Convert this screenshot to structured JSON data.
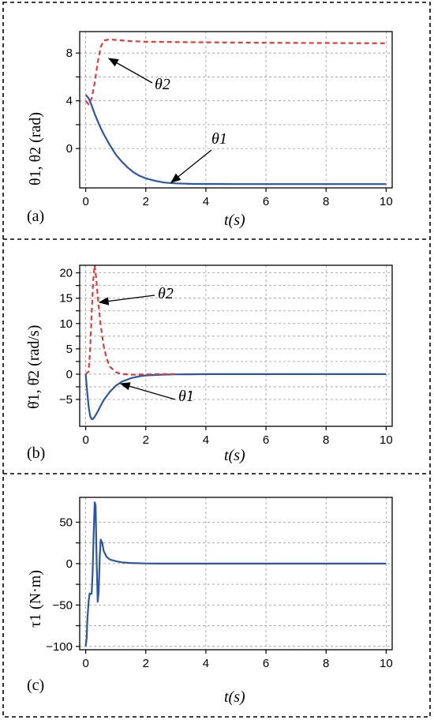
{
  "panels": [
    {
      "label": "(a)",
      "ylabel": "θ1, θ2 (rad)",
      "xlabel": "t(s)",
      "annotations": [
        "θ2",
        "θ1"
      ]
    },
    {
      "label": "(b)",
      "ylabel": "θ̇1, θ̇2 (rad/s)",
      "xlabel": "t(s)",
      "annotations": [
        "θ̇2",
        "θ̇1"
      ]
    },
    {
      "label": "(c)",
      "ylabel": "τ1 (N·m)",
      "xlabel": "t(s)",
      "annotations": []
    }
  ],
  "colors": {
    "theta1": "#2b55a5",
    "theta2": "#e23a3a",
    "grid": "#9a9a9a",
    "frame": "#000000"
  },
  "chart_data": [
    {
      "type": "line",
      "title": "",
      "xlabel": "t(s)",
      "ylabel": "θ1, θ2 (rad)",
      "xlim": [
        -0.2,
        10.2
      ],
      "ylim": [
        -3.3,
        9.8
      ],
      "xticks": [
        0,
        2,
        4,
        6,
        8,
        10
      ],
      "yticks": [
        0,
        4,
        8
      ],
      "grid": true,
      "series": [
        {
          "name": "θ1",
          "style": "solid",
          "color": "#2b55a5",
          "x": [
            0,
            0.1,
            0.2,
            0.3,
            0.4,
            0.5,
            0.6,
            0.8,
            1.0,
            1.2,
            1.4,
            1.6,
            1.8,
            2.0,
            2.3,
            2.6,
            3.0,
            3.5,
            4,
            5,
            6,
            7,
            8,
            9,
            10
          ],
          "y": [
            4.5,
            4.2,
            3.6,
            2.9,
            2.3,
            1.7,
            1.2,
            0.3,
            -0.5,
            -1.1,
            -1.6,
            -2.0,
            -2.3,
            -2.5,
            -2.7,
            -2.85,
            -2.92,
            -2.96,
            -2.97,
            -2.98,
            -2.98,
            -2.98,
            -2.98,
            -2.98,
            -2.98
          ]
        },
        {
          "name": "θ2",
          "style": "dashed",
          "color": "#e23a3a",
          "x": [
            0,
            0.1,
            0.2,
            0.3,
            0.4,
            0.5,
            0.6,
            0.8,
            1.0,
            1.5,
            2.0,
            3,
            4,
            5,
            6,
            7,
            8,
            9,
            10
          ],
          "y": [
            4.0,
            3.7,
            4.2,
            5.5,
            7.2,
            8.5,
            9.05,
            9.15,
            9.1,
            9.0,
            8.95,
            8.92,
            8.9,
            8.88,
            8.86,
            8.85,
            8.84,
            8.83,
            8.82
          ]
        }
      ]
    },
    {
      "type": "line",
      "title": "",
      "xlabel": "t(s)",
      "ylabel": "θ̇1, θ̇2 (rad/s)",
      "xlim": [
        -0.2,
        10.2
      ],
      "ylim": [
        -10.3,
        21.5
      ],
      "xticks": [
        0,
        2,
        4,
        6,
        8,
        10
      ],
      "yticks": [
        -5,
        0,
        5,
        10,
        15,
        20
      ],
      "grid": true,
      "series": [
        {
          "name": "θ̇1",
          "style": "solid",
          "color": "#2b55a5",
          "x": [
            0,
            0.05,
            0.1,
            0.15,
            0.2,
            0.25,
            0.3,
            0.4,
            0.5,
            0.6,
            0.8,
            1.0,
            1.2,
            1.5,
            1.8,
            2.0,
            2.5,
            3.0,
            3.5,
            4,
            5,
            6,
            7,
            8,
            9,
            10
          ],
          "y": [
            0,
            -3.5,
            -6.5,
            -8.3,
            -8.9,
            -8.8,
            -8.4,
            -7.4,
            -6.2,
            -5.1,
            -3.5,
            -2.3,
            -1.5,
            -0.8,
            -0.4,
            -0.25,
            -0.1,
            -0.04,
            -0.02,
            0,
            0,
            0,
            0,
            0,
            0,
            0
          ]
        },
        {
          "name": "θ̇2",
          "style": "dashed",
          "color": "#e23a3a",
          "x": [
            0,
            0.1,
            0.15,
            0.2,
            0.25,
            0.3,
            0.35,
            0.4,
            0.5,
            0.6,
            0.7,
            0.8,
            1.0,
            1.2,
            1.5,
            2.0,
            2.5,
            3.0
          ],
          "y": [
            0,
            0.5,
            5.0,
            12.0,
            18.5,
            21.5,
            19.0,
            15.5,
            9.5,
            5.5,
            3.0,
            1.5,
            0.4,
            0.05,
            -0.1,
            -0.05,
            0,
            0
          ]
        }
      ]
    },
    {
      "type": "line",
      "title": "",
      "xlabel": "t(s)",
      "ylabel": "τ1 (N·m)",
      "xlim": [
        -0.2,
        10.2
      ],
      "ylim": [
        -104,
        80
      ],
      "xticks": [
        0,
        2,
        4,
        6,
        8,
        10
      ],
      "yticks": [
        -100,
        -50,
        0,
        50
      ],
      "grid": true,
      "series": [
        {
          "name": "τ1",
          "style": "solid",
          "color": "#2b55a5",
          "x": [
            0,
            0.03,
            0.06,
            0.1,
            0.13,
            0.16,
            0.2,
            0.23,
            0.26,
            0.3,
            0.33,
            0.36,
            0.4,
            0.43,
            0.47,
            0.5,
            0.55,
            0.6,
            0.7,
            0.8,
            1.0,
            1.2,
            1.5,
            2.0,
            2.5,
            3,
            4,
            5,
            6,
            7,
            8,
            9,
            10
          ],
          "y": [
            -100,
            -90,
            -65,
            -45,
            -36,
            -37,
            -36,
            -10,
            30,
            74,
            70,
            10,
            -46,
            -35,
            10,
            29,
            25,
            15,
            8,
            5,
            3,
            1.5,
            0.8,
            0.2,
            0,
            0,
            0,
            0,
            0,
            0,
            0,
            0,
            0
          ]
        }
      ]
    }
  ]
}
